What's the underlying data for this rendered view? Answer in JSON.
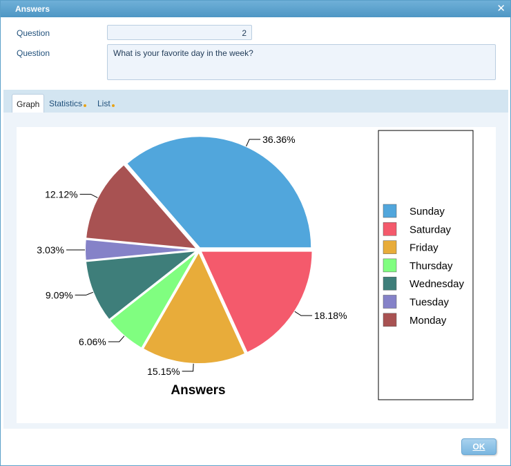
{
  "window": {
    "title": "Answers"
  },
  "form": {
    "number_label": "Question",
    "number_value": "2",
    "question_label": "Question",
    "question_text": "What is your favorite day in the week?"
  },
  "tabs": [
    {
      "label": "Graph",
      "active": true,
      "dot": false
    },
    {
      "label": "Statistics",
      "active": false,
      "dot": true
    },
    {
      "label": "List",
      "active": false,
      "dot": true
    }
  ],
  "footer": {
    "ok_label": "OK"
  },
  "icons": {
    "close": "close-icon",
    "tab_indicator": "dot-icon"
  },
  "chart_data": {
    "type": "pie",
    "title": "Answers",
    "legend_position": "right",
    "slices": [
      {
        "name": "Sunday",
        "value": 36.36,
        "label": "36.36%",
        "color": "#51a6dc"
      },
      {
        "name": "Monday",
        "value": 12.12,
        "label": "12.12%",
        "color": "#a85252"
      },
      {
        "name": "Tuesday",
        "value": 3.03,
        "label": "3.03%",
        "color": "#8582c8"
      },
      {
        "name": "Wednesday",
        "value": 9.09,
        "label": "9.09%",
        "color": "#3e7e7a"
      },
      {
        "name": "Thursday",
        "value": 6.06,
        "label": "6.06%",
        "color": "#80fe80"
      },
      {
        "name": "Friday",
        "value": 15.15,
        "label": "15.15%",
        "color": "#e8ac3a"
      },
      {
        "name": "Saturday",
        "value": 18.18,
        "label": "18.18%",
        "color": "#f45a6c"
      }
    ],
    "legend": [
      "Sunday",
      "Saturday",
      "Friday",
      "Thursday",
      "Wednesday",
      "Tuesday",
      "Monday"
    ]
  }
}
